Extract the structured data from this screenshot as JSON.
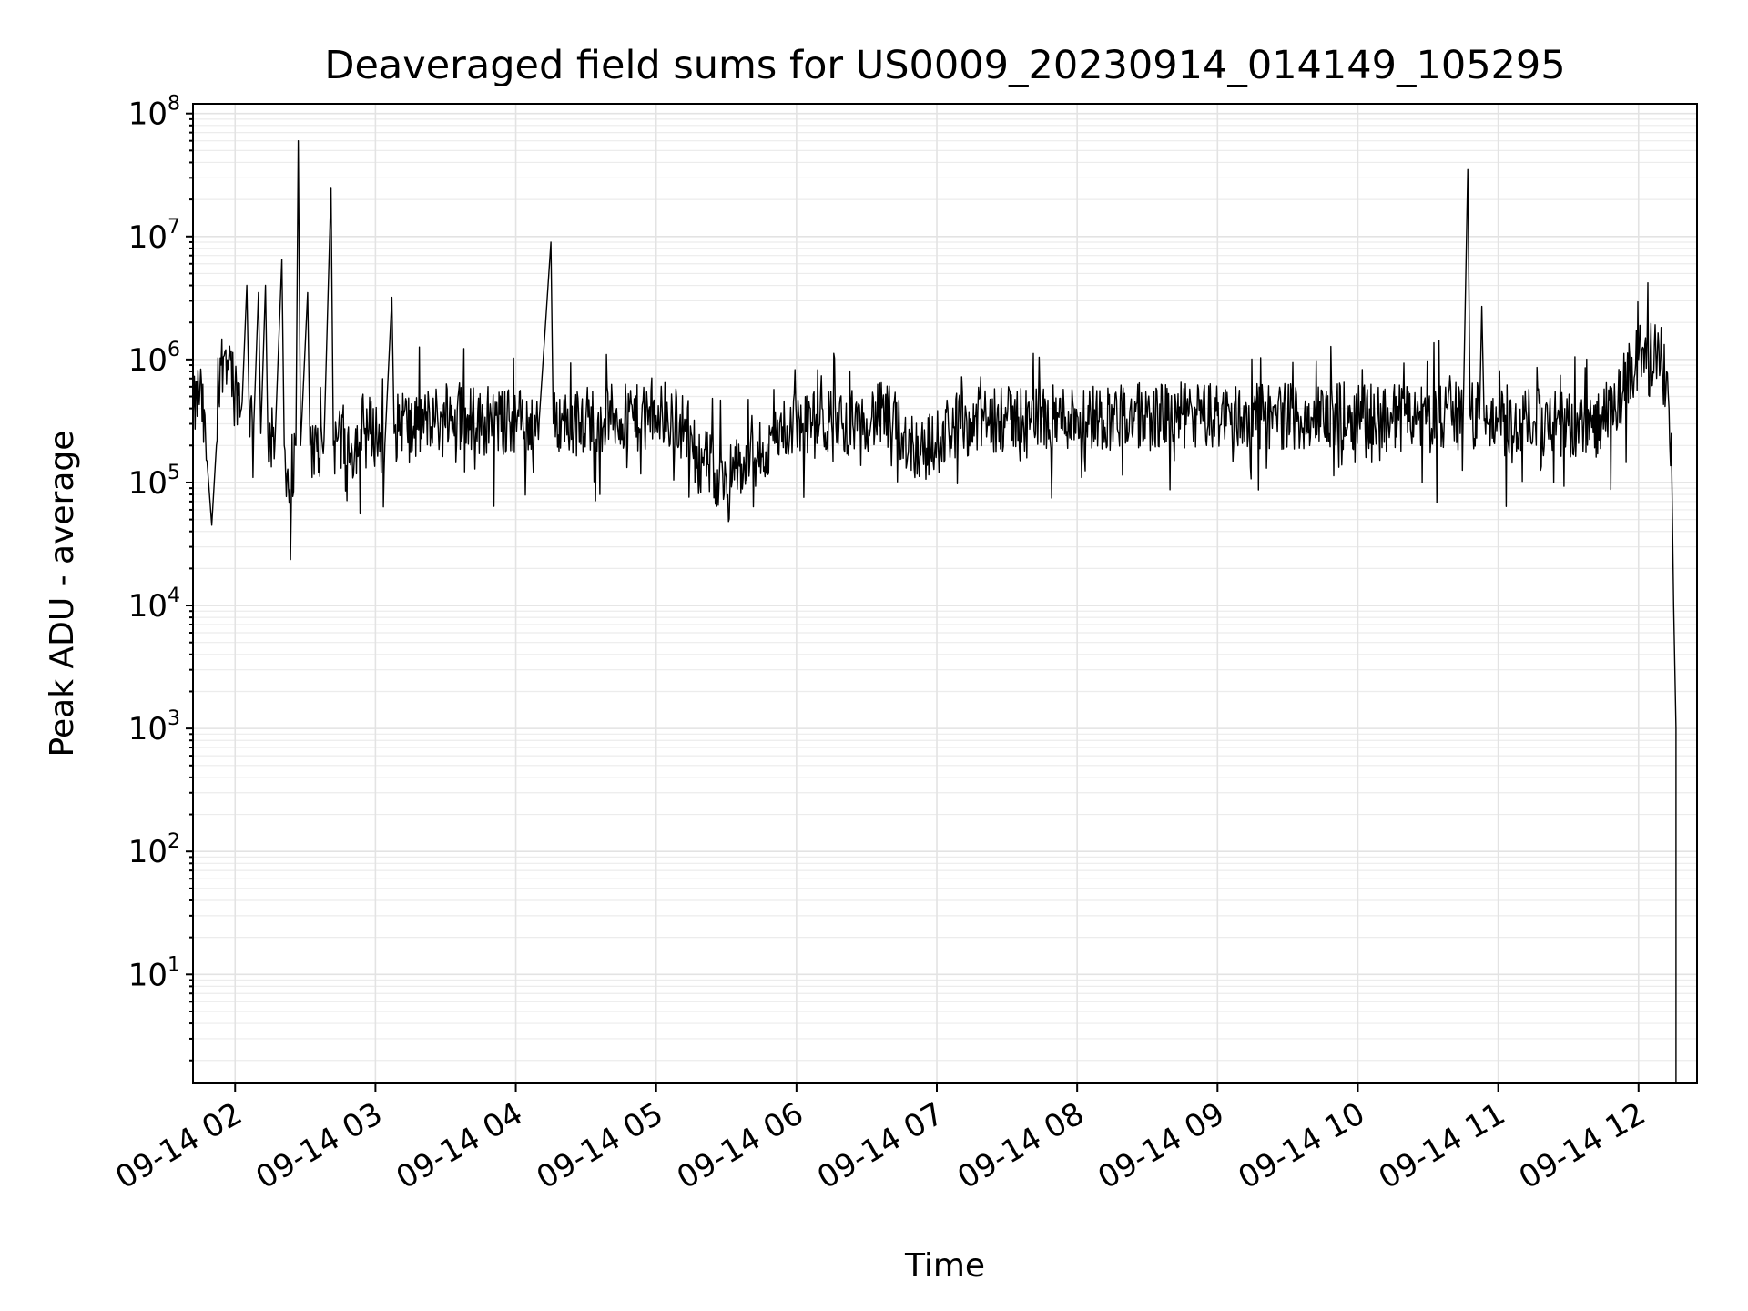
{
  "chart_data": {
    "type": "line",
    "title": "Deaveraged field sums for US0009_20230914_014149_105295",
    "xlabel": "Time",
    "ylabel": "Peak ADU - average",
    "yscale": "log",
    "grid": true,
    "xlim": [
      "2023-09-14 01:42",
      "2023-09-14 12:25"
    ],
    "ylim": [
      1.3,
      120000000
    ],
    "x_ticks": [
      "09-14 02",
      "09-14 03",
      "09-14 04",
      "09-14 05",
      "09-14 06",
      "09-14 07",
      "09-14 08",
      "09-14 09",
      "09-14 10",
      "09-14 11",
      "09-14 12"
    ],
    "y_ticks": [
      {
        "base": "10",
        "exp": "1",
        "value": 10
      },
      {
        "base": "10",
        "exp": "2",
        "value": 100
      },
      {
        "base": "10",
        "exp": "3",
        "value": 1000
      },
      {
        "base": "10",
        "exp": "4",
        "value": 10000
      },
      {
        "base": "10",
        "exp": "5",
        "value": 100000
      },
      {
        "base": "10",
        "exp": "6",
        "value": 1000000
      },
      {
        "base": "10",
        "exp": "7",
        "value": 10000000
      },
      {
        "base": "10",
        "exp": "8",
        "value": 100000000
      }
    ],
    "series": [
      {
        "color": "#000000",
        "points": [
          [
            "01:42",
            350000
          ],
          [
            "01:45",
            600000
          ],
          [
            "01:48",
            150000
          ],
          [
            "01:50",
            45000
          ],
          [
            "01:52",
            200000
          ],
          [
            "01:54",
            900000
          ],
          [
            "01:56",
            1200000
          ],
          [
            "01:58",
            1000000
          ],
          [
            "02:00",
            600000
          ],
          [
            "02:03",
            450000
          ],
          [
            "02:05",
            4000000
          ],
          [
            "02:06",
            400000
          ],
          [
            "02:08",
            300000
          ],
          [
            "02:10",
            3500000
          ],
          [
            "02:11",
            250000
          ],
          [
            "02:13",
            4000000
          ],
          [
            "02:14",
            250000
          ],
          [
            "02:17",
            200000
          ],
          [
            "02:20",
            6500000
          ],
          [
            "02:21",
            200000
          ],
          [
            "02:24",
            60000
          ],
          [
            "02:26",
            200000
          ],
          [
            "02:27",
            60000000
          ],
          [
            "02:28",
            200000
          ],
          [
            "02:31",
            3500000
          ],
          [
            "02:32",
            200000
          ],
          [
            "02:35",
            180000
          ],
          [
            "02:38",
            220000
          ],
          [
            "02:41",
            25000000
          ],
          [
            "02:42",
            200000
          ],
          [
            "02:45",
            250000
          ],
          [
            "02:50",
            180000
          ],
          [
            "02:55",
            300000
          ],
          [
            "03:00",
            250000
          ],
          [
            "03:04",
            200000
          ],
          [
            "03:07",
            3200000
          ],
          [
            "03:08",
            250000
          ],
          [
            "03:12",
            350000
          ],
          [
            "03:16",
            250000
          ],
          [
            "03:20",
            300000
          ],
          [
            "03:25",
            350000
          ],
          [
            "03:30",
            280000
          ],
          [
            "03:35",
            400000
          ],
          [
            "03:40",
            350000
          ],
          [
            "03:45",
            300000
          ],
          [
            "03:50",
            320000
          ],
          [
            "03:55",
            300000
          ],
          [
            "04:00",
            330000
          ],
          [
            "04:05",
            300000
          ],
          [
            "04:10",
            320000
          ],
          [
            "04:15",
            9000000
          ],
          [
            "04:16",
            300000
          ],
          [
            "04:20",
            330000
          ],
          [
            "04:25",
            300000
          ],
          [
            "04:30",
            340000
          ],
          [
            "04:35",
            320000
          ],
          [
            "04:40",
            350000
          ],
          [
            "04:45",
            330000
          ],
          [
            "04:50",
            340000
          ],
          [
            "04:55",
            320000
          ],
          [
            "05:00",
            350000
          ],
          [
            "05:05",
            330000
          ],
          [
            "05:10",
            300000
          ],
          [
            "05:15",
            250000
          ],
          [
            "05:20",
            160000
          ],
          [
            "05:25",
            120000
          ],
          [
            "05:30",
            110000
          ],
          [
            "05:35",
            130000
          ],
          [
            "05:40",
            140000
          ],
          [
            "05:45",
            170000
          ],
          [
            "05:50",
            220000
          ],
          [
            "05:55",
            280000
          ],
          [
            "06:00",
            300000
          ],
          [
            "06:05",
            290000
          ],
          [
            "06:10",
            300000
          ],
          [
            "06:15",
            310000
          ],
          [
            "06:20",
            300000
          ],
          [
            "06:25",
            320000
          ],
          [
            "06:30",
            330000
          ],
          [
            "06:35",
            350000
          ],
          [
            "06:40",
            330000
          ],
          [
            "06:45",
            250000
          ],
          [
            "06:50",
            200000
          ],
          [
            "06:55",
            190000
          ],
          [
            "07:00",
            210000
          ],
          [
            "07:05",
            280000
          ],
          [
            "07:10",
            300000
          ],
          [
            "07:15",
            310000
          ],
          [
            "07:20",
            320000
          ],
          [
            "07:25",
            330000
          ],
          [
            "07:30",
            320000
          ],
          [
            "07:35",
            340000
          ],
          [
            "07:40",
            330000
          ],
          [
            "07:45",
            340000
          ],
          [
            "07:50",
            330000
          ],
          [
            "07:55",
            340000
          ],
          [
            "08:00",
            350000
          ],
          [
            "08:10",
            340000
          ],
          [
            "08:20",
            350000
          ],
          [
            "08:30",
            340000
          ],
          [
            "08:40",
            350000
          ],
          [
            "08:50",
            345000
          ],
          [
            "09:00",
            350000
          ],
          [
            "09:10",
            340000
          ],
          [
            "09:20",
            345000
          ],
          [
            "09:30",
            350000
          ],
          [
            "09:40",
            340000
          ],
          [
            "09:50",
            345000
          ],
          [
            "10:00",
            350000
          ],
          [
            "10:10",
            345000
          ],
          [
            "10:20",
            350000
          ],
          [
            "10:30",
            345000
          ],
          [
            "10:40",
            350000
          ],
          [
            "10:45",
            340000
          ],
          [
            "10:47",
            35000000
          ],
          [
            "10:48",
            350000
          ],
          [
            "10:52",
            330000
          ],
          [
            "10:53",
            2700000
          ],
          [
            "10:54",
            320000
          ],
          [
            "11:00",
            310000
          ],
          [
            "11:10",
            300000
          ],
          [
            "11:20",
            310000
          ],
          [
            "11:30",
            290000
          ],
          [
            "11:40",
            280000
          ],
          [
            "11:50",
            400000
          ],
          [
            "11:55",
            700000
          ],
          [
            "12:00",
            1000000
          ],
          [
            "12:03",
            1500000
          ],
          [
            "12:05",
            1100000
          ],
          [
            "12:08",
            1050000
          ],
          [
            "12:10",
            1000000
          ],
          [
            "12:12",
            800000
          ],
          [
            "12:13",
            400000
          ],
          [
            "12:14",
            250000
          ],
          [
            "12:15",
            10000
          ],
          [
            "12:16",
            1000
          ],
          [
            "12:16",
            1.3
          ]
        ]
      }
    ]
  }
}
